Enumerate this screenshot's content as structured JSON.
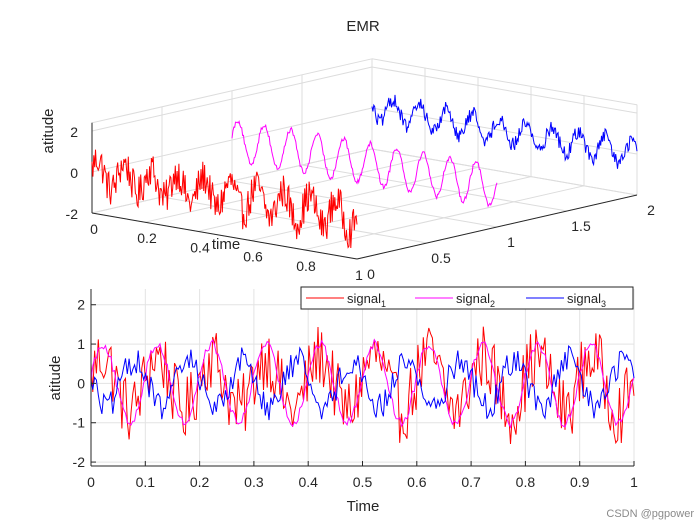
{
  "figure": {
    "watermark": "CSDN @pgpower"
  },
  "chart_data": [
    {
      "type": "line",
      "subtype": "3d-ribbon",
      "title": "EMR",
      "xlabel": "time",
      "ylabel": "",
      "zlabel": "atitude",
      "xlim": [
        0,
        1
      ],
      "ylim": [
        0,
        2
      ],
      "zlim": [
        -2,
        2.4
      ],
      "x_ticks": [
        "0",
        "0.2",
        "0.4",
        "0.6",
        "0.8",
        "1"
      ],
      "y_ticks": [
        "0",
        "0.5",
        "1",
        "1.5",
        "2"
      ],
      "z_ticks": [
        "-2",
        "0",
        "2"
      ],
      "grid": true,
      "samples": 300,
      "series": [
        {
          "name": "signal1",
          "color": "#ff0000",
          "depth": 0,
          "cycles": 10,
          "amplitude": 0.7,
          "noise": 0.85,
          "phase": 0.2
        },
        {
          "name": "signal2",
          "color": "#ff00ff",
          "depth": 1,
          "cycles": 10,
          "amplitude": 1.0,
          "noise": 0.12,
          "phase": 0.2
        },
        {
          "name": "signal3",
          "color": "#0000ff",
          "depth": 2,
          "cycles": 10,
          "amplitude": 0.6,
          "noise": 0.35,
          "phase": 2.8
        }
      ]
    },
    {
      "type": "line",
      "title": "",
      "xlabel": "Time",
      "ylabel": "atitude",
      "xlim": [
        0,
        1
      ],
      "ylim": [
        -2.1,
        2.4
      ],
      "x_ticks": [
        "0",
        "0.1",
        "0.2",
        "0.3",
        "0.4",
        "0.5",
        "0.6",
        "0.7",
        "0.8",
        "0.9",
        "1"
      ],
      "y_ticks": [
        "-2",
        "-1",
        "0",
        "1",
        "2"
      ],
      "grid": true,
      "legend": {
        "placement": "top-right",
        "entries": [
          {
            "label": "signal",
            "sub": "1",
            "color": "#ff0000"
          },
          {
            "label": "signal",
            "sub": "2",
            "color": "#ff00ff"
          },
          {
            "label": "signal",
            "sub": "3",
            "color": "#0000ff"
          }
        ]
      },
      "samples": 300,
      "series": [
        {
          "name": "signal1",
          "color": "#ff0000",
          "cycles": 10,
          "amplitude": 0.7,
          "noise": 0.85,
          "phase": 0.2
        },
        {
          "name": "signal2",
          "color": "#ff00ff",
          "cycles": 10,
          "amplitude": 1.0,
          "noise": 0.12,
          "phase": 0.2
        },
        {
          "name": "signal3",
          "color": "#0000ff",
          "cycles": 10,
          "amplitude": 0.6,
          "noise": 0.35,
          "phase": 2.8
        }
      ]
    }
  ]
}
